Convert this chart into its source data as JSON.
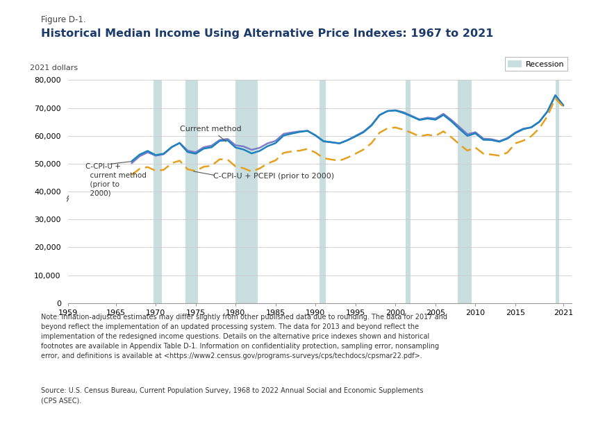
{
  "figure_label": "Figure D-1.",
  "title": "Historical Median Income Using Alternative Price Indexes: 1967 to 2021",
  "ylabel": "2021 dollars",
  "recession_label": "Recession",
  "recession_periods": [
    [
      1969.75,
      1970.75
    ],
    [
      1973.75,
      1975.25
    ],
    [
      1980.0,
      1982.75
    ],
    [
      1990.5,
      1991.25
    ],
    [
      2001.25,
      2001.92
    ],
    [
      2007.75,
      2009.5
    ],
    [
      2020.0,
      2020.5
    ]
  ],
  "current_method": {
    "years": [
      1967,
      1968,
      1969,
      1970,
      1971,
      1972,
      1973,
      1974,
      1975,
      1976,
      1977,
      1978,
      1979,
      1980,
      1981,
      1982,
      1983,
      1984,
      1985,
      1986,
      1987,
      1988,
      1989,
      1990,
      1991,
      1992,
      1993,
      1994,
      1995,
      1996,
      1997,
      1998,
      1999,
      2000,
      2001,
      2002,
      2003,
      2004,
      2005,
      2006,
      2007,
      2008,
      2009,
      2010,
      2011,
      2012,
      2013,
      2014,
      2015,
      2016,
      2017,
      2018,
      2019,
      2020,
      2021
    ],
    "values": [
      50200,
      52700,
      54100,
      52900,
      53400,
      55900,
      57500,
      54700,
      54100,
      55900,
      56500,
      58500,
      58900,
      56600,
      56200,
      55000,
      55700,
      57300,
      58200,
      60700,
      61200,
      61600,
      61800,
      60100,
      58000,
      57700,
      57300,
      58500,
      60000,
      61500,
      63900,
      67500,
      68900,
      69200,
      68500,
      67200,
      65900,
      66500,
      66200,
      67900,
      65700,
      63200,
      60600,
      61300,
      59000,
      58800,
      58100,
      59200,
      61200,
      62600,
      63000,
      65000,
      68700,
      74600,
      70800
    ],
    "color": "#7B7EC8",
    "linewidth": 1.8
  },
  "ccpiu_current": {
    "years": [
      1967,
      1968,
      1969,
      1970,
      1971,
      1972,
      1973,
      1974,
      1975,
      1976,
      1977,
      1978,
      1979,
      1980,
      1981,
      1982,
      1983,
      1984,
      1985,
      1986,
      1987,
      1988,
      1989,
      1990,
      1991,
      1992,
      1993,
      1994,
      1995,
      1996,
      1997,
      1998,
      1999,
      2000,
      2001,
      2002,
      2003,
      2004,
      2005,
      2006,
      2007,
      2008,
      2009,
      2010,
      2011,
      2012,
      2013,
      2014,
      2015,
      2016,
      2017,
      2018,
      2019,
      2020,
      2021
    ],
    "values": [
      50900,
      53300,
      54600,
      53100,
      53600,
      56000,
      57400,
      54200,
      53600,
      55400,
      55900,
      58200,
      58400,
      55800,
      55100,
      53700,
      54600,
      56300,
      57400,
      60100,
      60800,
      61400,
      61800,
      60200,
      58100,
      57700,
      57300,
      58400,
      59800,
      61300,
      63700,
      67400,
      68900,
      69100,
      68200,
      67000,
      65700,
      66200,
      65800,
      67500,
      65200,
      62500,
      60000,
      60900,
      58600,
      58500,
      57900,
      59000,
      61000,
      62400,
      63100,
      65100,
      68700,
      74500,
      71000
    ],
    "color": "#1E82BE",
    "linewidth": 1.8
  },
  "ccpiu_pcepi": {
    "years": [
      1967,
      1968,
      1969,
      1970,
      1971,
      1972,
      1973,
      1974,
      1975,
      1976,
      1977,
      1978,
      1979,
      1980,
      1981,
      1982,
      1983,
      1984,
      1985,
      1986,
      1987,
      1988,
      1989,
      1990,
      1991,
      1992,
      1993,
      1994,
      1995,
      1996,
      1997,
      1998,
      1999,
      2000,
      2001,
      2002,
      2003,
      2004,
      2005,
      2006,
      2007,
      2008,
      2009,
      2010,
      2011,
      2012,
      2013,
      2014,
      2015,
      2016,
      2017,
      2018,
      2019,
      2020,
      2021
    ],
    "values": [
      46000,
      48200,
      48800,
      47500,
      47800,
      50200,
      51100,
      48000,
      47400,
      48900,
      49300,
      51600,
      51500,
      49000,
      48400,
      47200,
      48300,
      50100,
      51200,
      53900,
      54400,
      54700,
      55300,
      54000,
      52000,
      51500,
      51100,
      52200,
      53600,
      55100,
      57400,
      61100,
      62700,
      63000,
      62200,
      61100,
      59800,
      60400,
      60000,
      61600,
      59500,
      57000,
      54700,
      55800,
      53600,
      53300,
      52900,
      54000,
      57300,
      58300,
      59900,
      62700,
      67000,
      73400,
      70400
    ],
    "color": "#E5A020",
    "linestyle": "dashed",
    "linewidth": 1.8
  },
  "ylim": [
    0,
    80000
  ],
  "yticks": [
    0,
    10000,
    20000,
    30000,
    40000,
    50000,
    60000,
    70000,
    80000
  ],
  "ytick_labels": [
    "0",
    "10,000",
    "20,000",
    "30,000",
    "40,000",
    "50,000",
    "60,000",
    "70,000",
    "80,000"
  ],
  "xlim": [
    1959,
    2022
  ],
  "xticks": [
    1959,
    1965,
    1970,
    1975,
    1980,
    1985,
    1990,
    1995,
    2000,
    2005,
    2010,
    2015,
    2021
  ],
  "recession_color": "#B8D4D4",
  "recession_alpha": 0.75,
  "background_color": "#FFFFFF",
  "grid_color": "#CCCCCC",
  "note_text": "Note: Inflation-adjusted estimates may differ slightly from other published data due to rounding. The data for 2017 and beyond reflect the implementation of an updated processing system. The data for 2013 and beyond reflect the\nimplementation of the redesigned income questions. Details on the alternative price indexes shown and historical footnotes are available in Appendix Table D-1. Information on confidentiality protection, sampling error, nonsampling\nerror, and definitions is available at <https://www2.census.gov/programs-surveys/cps/techdocs/cpsmar22.pdf>.",
  "source_text": "Source: U.S. Census Bureau, Current Population Survey, 1968 to 2022 Annual Social and Economic Supplements\n(CPS ASEC).",
  "title_color": "#1B3A6B",
  "figure_label_color": "#444444"
}
